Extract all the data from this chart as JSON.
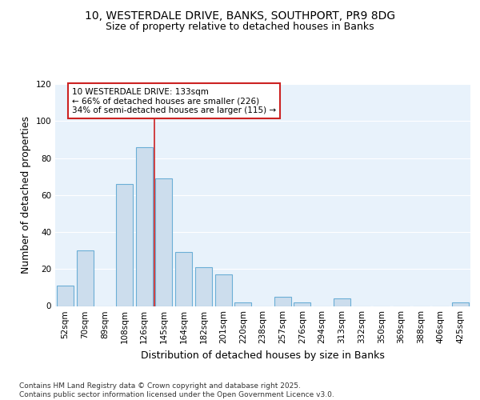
{
  "title_line1": "10, WESTERDALE DRIVE, BANKS, SOUTHPORT, PR9 8DG",
  "title_line2": "Size of property relative to detached houses in Banks",
  "xlabel": "Distribution of detached houses by size in Banks",
  "ylabel": "Number of detached properties",
  "bar_labels": [
    "52sqm",
    "70sqm",
    "89sqm",
    "108sqm",
    "126sqm",
    "145sqm",
    "164sqm",
    "182sqm",
    "201sqm",
    "220sqm",
    "238sqm",
    "257sqm",
    "276sqm",
    "294sqm",
    "313sqm",
    "332sqm",
    "350sqm",
    "369sqm",
    "388sqm",
    "406sqm",
    "425sqm"
  ],
  "bar_values": [
    11,
    30,
    0,
    66,
    86,
    69,
    29,
    21,
    17,
    2,
    0,
    5,
    2,
    0,
    4,
    0,
    0,
    0,
    0,
    0,
    2
  ],
  "bar_color": "#ccdded",
  "bar_edge_color": "#6baed6",
  "plot_bg_color": "#e8f2fb",
  "fig_bg_color": "#ffffff",
  "grid_color": "#ffffff",
  "vline_color": "#cc2222",
  "vline_x": 4.5,
  "annotation_text": "10 WESTERDALE DRIVE: 133sqm\n← 66% of detached houses are smaller (226)\n34% of semi-detached houses are larger (115) →",
  "annotation_box_facecolor": "#ffffff",
  "annotation_box_edgecolor": "#cc2222",
  "ylim": [
    0,
    120
  ],
  "yticks": [
    0,
    20,
    40,
    60,
    80,
    100,
    120
  ],
  "footer_text": "Contains HM Land Registry data © Crown copyright and database right 2025.\nContains public sector information licensed under the Open Government Licence v3.0.",
  "title_fontsize": 10,
  "subtitle_fontsize": 9,
  "axis_label_fontsize": 9,
  "tick_fontsize": 7.5,
  "annotation_fontsize": 7.5,
  "footer_fontsize": 6.5
}
